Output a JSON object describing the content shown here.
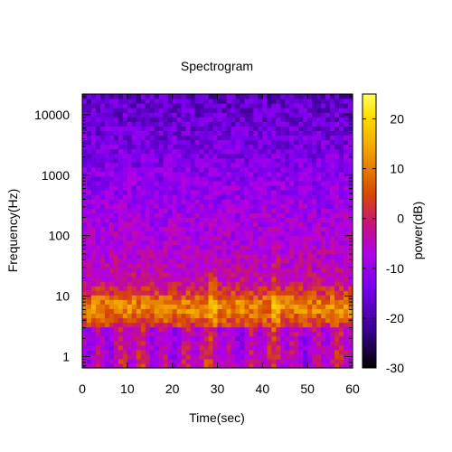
{
  "chart_data": {
    "type": "heatmap",
    "title": "Spectrogram",
    "xlabel": "Time(sec)",
    "ylabel": "Frequency(Hz)",
    "colorbar_label": "power(dB)",
    "xlim": [
      0,
      60
    ],
    "ylim": [
      0.65,
      22000
    ],
    "y_scale": "log",
    "x_ticks": [
      0,
      10,
      20,
      30,
      40,
      50,
      60
    ],
    "y_ticks": [
      1,
      10,
      100,
      1000,
      10000
    ],
    "colorbar_range": [
      -30,
      25
    ],
    "colorbar_ticks": [
      20,
      10,
      0,
      -10,
      -20,
      -30
    ],
    "colormap": [
      "#000000",
      "#3b0090",
      "#7a00f0",
      "#b200e6",
      "#c81080",
      "#d84a00",
      "#ee9a00",
      "#ffe000",
      "#ffff60"
    ],
    "features": {
      "low_band_hz": [
        4,
        12
      ],
      "low_band_db": 12,
      "bursts_sec": [
        29,
        43
      ]
    }
  }
}
